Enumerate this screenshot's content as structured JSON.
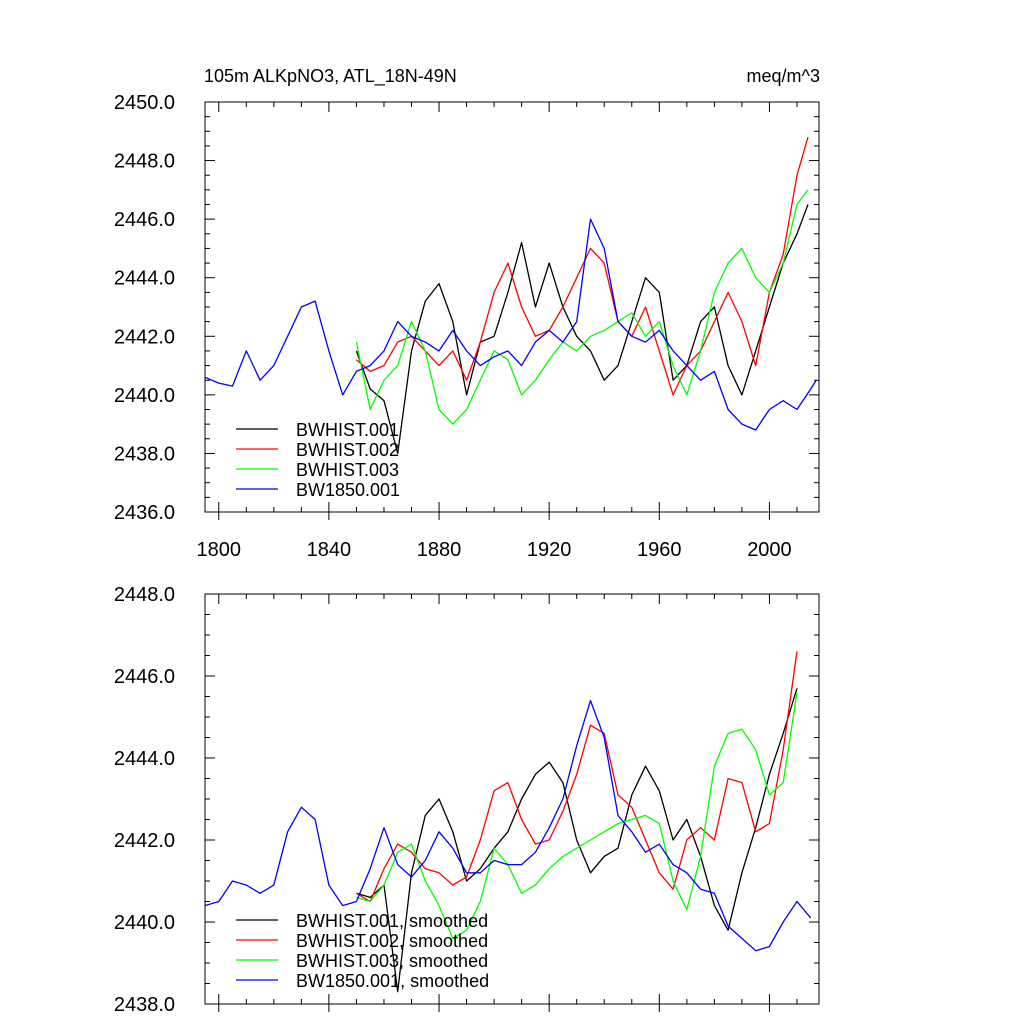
{
  "chart_data": [
    {
      "type": "line",
      "title": "105m ALKpNO3, ATL_18N-49N",
      "units": "meq/m^3",
      "xlim": [
        1795,
        2018
      ],
      "ylim": [
        2436,
        2450
      ],
      "x_ticks": [
        1800,
        1840,
        1880,
        1920,
        1960,
        2000
      ],
      "x_tick_labels": [
        "1800",
        "1840",
        "1880",
        "1920",
        "1960",
        "2000"
      ],
      "y_ticks": [
        2436,
        2438,
        2440,
        2442,
        2444,
        2446,
        2448,
        2450
      ],
      "y_tick_labels": [
        "2436.0",
        "2438.0",
        "2440.0",
        "2442.0",
        "2444.0",
        "2446.0",
        "2448.0",
        "2450.0"
      ],
      "legend_placement": "bottom-left",
      "series": [
        {
          "name": "BWHIST.001",
          "color": "#000000",
          "x": [
            1850,
            1855,
            1860,
            1865,
            1870,
            1875,
            1880,
            1885,
            1890,
            1895,
            1900,
            1905,
            1910,
            1915,
            1920,
            1925,
            1930,
            1935,
            1940,
            1945,
            1950,
            1955,
            1960,
            1965,
            1970,
            1975,
            1980,
            1985,
            1990,
            1995,
            2000,
            2005,
            2010,
            2014
          ],
          "y": [
            2441.5,
            2440.2,
            2439.8,
            2438.0,
            2441.5,
            2443.2,
            2443.8,
            2442.5,
            2440.0,
            2441.8,
            2442.0,
            2443.5,
            2445.2,
            2443.0,
            2444.5,
            2443.0,
            2442.0,
            2441.5,
            2440.5,
            2441.0,
            2442.5,
            2444.0,
            2443.5,
            2440.5,
            2441.0,
            2442.5,
            2443.0,
            2441.0,
            2440.0,
            2441.5,
            2443.0,
            2444.5,
            2445.5,
            2446.5
          ]
        },
        {
          "name": "BWHIST.002",
          "color": "#ff0000",
          "x": [
            1850,
            1855,
            1860,
            1865,
            1870,
            1875,
            1880,
            1885,
            1890,
            1895,
            1900,
            1905,
            1910,
            1915,
            1920,
            1925,
            1930,
            1935,
            1940,
            1945,
            1950,
            1955,
            1960,
            1965,
            1970,
            1975,
            1980,
            1985,
            1990,
            1995,
            2000,
            2005,
            2010,
            2014
          ],
          "y": [
            2441.2,
            2440.8,
            2441.0,
            2441.8,
            2442.0,
            2441.5,
            2441.0,
            2441.5,
            2440.5,
            2441.8,
            2443.5,
            2444.5,
            2443.0,
            2442.0,
            2442.2,
            2443.0,
            2444.0,
            2445.0,
            2444.5,
            2442.5,
            2442.0,
            2443.0,
            2441.5,
            2440.0,
            2441.0,
            2441.5,
            2442.5,
            2443.5,
            2442.5,
            2441.0,
            2443.5,
            2444.8,
            2447.5,
            2448.8
          ]
        },
        {
          "name": "BWHIST.003",
          "color": "#00ff00",
          "x": [
            1850,
            1855,
            1860,
            1865,
            1870,
            1875,
            1880,
            1885,
            1890,
            1895,
            1900,
            1905,
            1910,
            1915,
            1920,
            1925,
            1930,
            1935,
            1940,
            1945,
            1950,
            1955,
            1960,
            1965,
            1970,
            1975,
            1980,
            1985,
            1990,
            1995,
            2000,
            2005,
            2010,
            2014
          ],
          "y": [
            2441.8,
            2439.5,
            2440.5,
            2441.0,
            2442.5,
            2441.5,
            2439.5,
            2439.0,
            2439.5,
            2440.5,
            2441.5,
            2441.2,
            2440.0,
            2440.5,
            2441.2,
            2441.8,
            2441.5,
            2442.0,
            2442.2,
            2442.5,
            2442.8,
            2442.0,
            2442.5,
            2441.0,
            2440.0,
            2441.5,
            2443.5,
            2444.5,
            2445.0,
            2444.0,
            2443.5,
            2444.5,
            2446.5,
            2447.0
          ]
        },
        {
          "name": "BW1850.001",
          "color": "#0000ff",
          "x": [
            1795,
            1800,
            1805,
            1810,
            1815,
            1820,
            1825,
            1830,
            1835,
            1840,
            1845,
            1850,
            1855,
            1860,
            1865,
            1870,
            1875,
            1880,
            1885,
            1890,
            1895,
            1900,
            1905,
            1910,
            1915,
            1920,
            1925,
            1930,
            1935,
            1940,
            1945,
            1950,
            1955,
            1960,
            1965,
            1970,
            1975,
            1980,
            1985,
            1990,
            1995,
            2000,
            2005,
            2010,
            2015,
            2017
          ],
          "y": [
            2440.6,
            2440.4,
            2440.3,
            2441.5,
            2440.5,
            2441.0,
            2442.0,
            2443.0,
            2443.2,
            2441.5,
            2440.0,
            2440.8,
            2441.0,
            2441.5,
            2442.5,
            2442.0,
            2441.8,
            2441.5,
            2442.2,
            2441.5,
            2441.0,
            2441.3,
            2441.5,
            2441.0,
            2441.8,
            2442.2,
            2441.8,
            2442.5,
            2446.0,
            2445.0,
            2442.5,
            2442.0,
            2441.8,
            2442.2,
            2441.5,
            2441.0,
            2440.5,
            2440.8,
            2439.5,
            2439.0,
            2438.8,
            2439.5,
            2439.8,
            2439.5,
            2440.2,
            2440.5
          ]
        }
      ]
    },
    {
      "type": "line",
      "xlim": [
        1795,
        2018
      ],
      "ylim": [
        2438,
        2448
      ],
      "x_ticks": [
        1800,
        1840,
        1880,
        1920,
        1960,
        2000
      ],
      "y_ticks": [
        2438,
        2440,
        2442,
        2444,
        2446,
        2448
      ],
      "y_tick_labels": [
        "2438.0",
        "2440.0",
        "2442.0",
        "2444.0",
        "2446.0",
        "2448.0"
      ],
      "legend_placement": "bottom-left",
      "series": [
        {
          "name": "BWHIST.001, smoothed",
          "color": "#000000",
          "x": [
            1850,
            1855,
            1860,
            1865,
            1870,
            1875,
            1880,
            1885,
            1890,
            1895,
            1900,
            1905,
            1910,
            1915,
            1920,
            1925,
            1930,
            1935,
            1940,
            1945,
            1950,
            1955,
            1960,
            1965,
            1970,
            1975,
            1980,
            1985,
            1990,
            1995,
            2000,
            2005,
            2010
          ],
          "y": [
            2440.7,
            2440.6,
            2440.9,
            2438.3,
            2441.2,
            2442.6,
            2443.0,
            2442.2,
            2441.0,
            2441.3,
            2441.8,
            2442.2,
            2443.0,
            2443.6,
            2443.9,
            2443.4,
            2442.0,
            2441.2,
            2441.6,
            2441.8,
            2443.1,
            2443.8,
            2443.2,
            2442.0,
            2442.5,
            2441.6,
            2440.4,
            2439.8,
            2441.2,
            2442.3,
            2443.6,
            2444.6,
            2445.7
          ]
        },
        {
          "name": "BWHIST.002, smoothed",
          "color": "#ff0000",
          "x": [
            1850,
            1855,
            1860,
            1865,
            1870,
            1875,
            1880,
            1885,
            1890,
            1895,
            1900,
            1905,
            1910,
            1915,
            1920,
            1925,
            1930,
            1935,
            1940,
            1945,
            1950,
            1955,
            1960,
            1965,
            1970,
            1975,
            1980,
            1985,
            1990,
            1995,
            2000,
            2005,
            2010
          ],
          "y": [
            2440.7,
            2440.5,
            2441.3,
            2441.9,
            2441.7,
            2441.3,
            2441.2,
            2440.9,
            2441.1,
            2442.0,
            2443.2,
            2443.4,
            2442.5,
            2441.9,
            2442.0,
            2442.7,
            2443.6,
            2444.8,
            2444.6,
            2443.1,
            2442.8,
            2442.0,
            2441.2,
            2440.8,
            2442.0,
            2442.3,
            2442.0,
            2443.5,
            2443.4,
            2442.2,
            2442.4,
            2444.2,
            2446.6
          ]
        },
        {
          "name": "BWHIST.003, smoothed",
          "color": "#00ff00",
          "x": [
            1850,
            1855,
            1860,
            1865,
            1870,
            1875,
            1880,
            1885,
            1890,
            1895,
            1900,
            1905,
            1910,
            1915,
            1920,
            1925,
            1930,
            1935,
            1940,
            1945,
            1950,
            1955,
            1960,
            1965,
            1970,
            1975,
            1980,
            1985,
            1990,
            1995,
            2000,
            2005,
            2010
          ],
          "y": [
            2440.6,
            2440.5,
            2440.9,
            2441.7,
            2441.9,
            2441.0,
            2440.4,
            2439.6,
            2439.8,
            2440.5,
            2441.8,
            2441.4,
            2440.7,
            2440.9,
            2441.3,
            2441.6,
            2441.8,
            2442.0,
            2442.2,
            2442.4,
            2442.5,
            2442.6,
            2442.4,
            2441.0,
            2440.3,
            2441.6,
            2443.8,
            2444.6,
            2444.7,
            2444.2,
            2443.1,
            2443.4,
            2445.6
          ]
        },
        {
          "name": "BW1850.001, smoothed",
          "color": "#0000ff",
          "x": [
            1795,
            1800,
            1805,
            1810,
            1815,
            1820,
            1825,
            1830,
            1835,
            1840,
            1845,
            1850,
            1855,
            1860,
            1865,
            1870,
            1875,
            1880,
            1885,
            1890,
            1895,
            1900,
            1905,
            1910,
            1915,
            1920,
            1925,
            1930,
            1935,
            1940,
            1945,
            1950,
            1955,
            1960,
            1965,
            1970,
            1975,
            1980,
            1985,
            1990,
            1995,
            2000,
            2005,
            2010,
            2015
          ],
          "y": [
            2440.4,
            2440.5,
            2441.0,
            2440.9,
            2440.7,
            2440.9,
            2442.2,
            2442.8,
            2442.5,
            2440.9,
            2440.4,
            2440.5,
            2441.3,
            2442.3,
            2441.4,
            2441.1,
            2441.5,
            2442.2,
            2441.8,
            2441.2,
            2441.2,
            2441.5,
            2441.4,
            2441.4,
            2441.7,
            2442.3,
            2443.0,
            2444.3,
            2445.4,
            2444.5,
            2442.6,
            2442.2,
            2441.7,
            2441.9,
            2441.4,
            2441.2,
            2440.8,
            2440.7,
            2439.9,
            2439.6,
            2439.3,
            2439.4,
            2440.0,
            2440.5,
            2440.1
          ]
        }
      ]
    }
  ]
}
